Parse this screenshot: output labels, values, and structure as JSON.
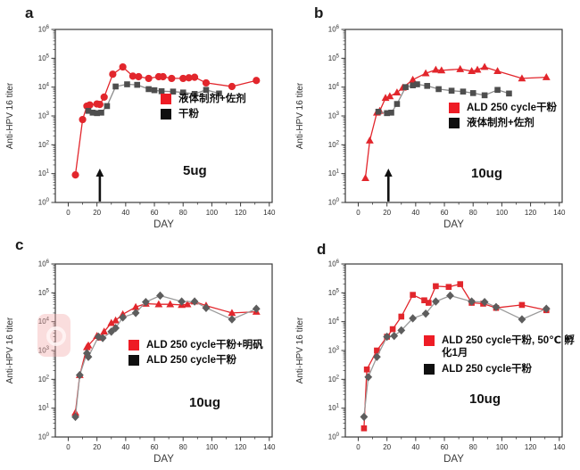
{
  "figure": {
    "background": "#ffffff",
    "watermark_color": "#f2a6a6"
  },
  "colors": {
    "red_marker": "#e2262c",
    "red_line": "#e2262c",
    "gray_square": "#4e4e4e",
    "gray_diamond": "#5d5d5d",
    "gray_line": "#8c8c8c",
    "legend_red": "#ee1c25",
    "legend_black": "#101010",
    "axis": "#3a3a3a"
  },
  "chart_data": [
    {
      "id": "a",
      "panel_label": "a",
      "type": "line",
      "xlabel": "DAY",
      "ylabel": "Anti-HPV 16 titer",
      "x_ticks": [
        0,
        20,
        40,
        60,
        80,
        100,
        120,
        140
      ],
      "x_minor_ticks": [
        10,
        30,
        50,
        70,
        90,
        110,
        130
      ],
      "xlim": [
        -9,
        142
      ],
      "y_scale": "log",
      "ylim_exp": [
        0,
        6
      ],
      "annotation": "5ug",
      "arrow_day": 22,
      "series": [
        {
          "name": "液体制剂+佐剂",
          "marker": "circle",
          "color": "#e2262c",
          "line_color": "#e2262c",
          "legend_color": "#ee1c25",
          "points": [
            [
              5,
              9
            ],
            [
              10,
              750
            ],
            [
              13,
              2200
            ],
            [
              15,
              2400
            ],
            [
              20,
              2600
            ],
            [
              22,
              2500
            ],
            [
              25,
              4500
            ],
            [
              31,
              28000
            ],
            [
              38,
              50000
            ],
            [
              45,
              24000
            ],
            [
              49,
              23000
            ],
            [
              56,
              20000
            ],
            [
              63,
              23000
            ],
            [
              66,
              23000
            ],
            [
              72,
              20000
            ],
            [
              80,
              20000
            ],
            [
              84,
              21000
            ],
            [
              88,
              22000
            ],
            [
              96,
              14000
            ],
            [
              114,
              10500
            ],
            [
              131,
              17000
            ]
          ]
        },
        {
          "name": "干粉",
          "marker": "square",
          "color": "#4e4e4e",
          "line_color": "#8c8c8c",
          "legend_color": "#101010",
          "points": [
            [
              14,
              1500
            ],
            [
              17,
              1300
            ],
            [
              20,
              1250
            ],
            [
              23,
              1300
            ],
            [
              27,
              2200
            ],
            [
              33,
              10500
            ],
            [
              41,
              12500
            ],
            [
              48,
              12000
            ],
            [
              56,
              8500
            ],
            [
              60,
              7800
            ],
            [
              65,
              7200
            ],
            [
              73,
              7000
            ],
            [
              80,
              6500
            ],
            [
              88,
              5800
            ],
            [
              96,
              8000
            ],
            [
              105,
              6000
            ]
          ]
        }
      ]
    },
    {
      "id": "b",
      "panel_label": "b",
      "type": "line",
      "xlabel": "DAY",
      "ylabel": "Anti-HPV 16 titer",
      "x_ticks": [
        0,
        20,
        40,
        60,
        80,
        100,
        120,
        140
      ],
      "x_minor_ticks": [
        10,
        30,
        50,
        70,
        90,
        110,
        130
      ],
      "xlim": [
        -9,
        142
      ],
      "y_scale": "log",
      "ylim_exp": [
        0,
        6
      ],
      "annotation": "10ug",
      "arrow_day": 21,
      "series": [
        {
          "name": "ALD 250 cycle干粉",
          "marker": "triangle",
          "color": "#e2262c",
          "line_color": "#e2262c",
          "legend_color": "#ee1c25",
          "points": [
            [
              5,
              7
            ],
            [
              8,
              140
            ],
            [
              13,
              1300
            ],
            [
              15,
              1500
            ],
            [
              19,
              4200
            ],
            [
              22,
              4800
            ],
            [
              27,
              6500
            ],
            [
              31,
              9500
            ],
            [
              38,
              18000
            ],
            [
              47,
              30000
            ],
            [
              54,
              40000
            ],
            [
              58,
              38000
            ],
            [
              71,
              42000
            ],
            [
              79,
              36000
            ],
            [
              83,
              40000
            ],
            [
              88,
              50000
            ],
            [
              97,
              36000
            ],
            [
              114,
              20000
            ],
            [
              131,
              22000
            ]
          ]
        },
        {
          "name": "液体制剂+佐剂",
          "marker": "square",
          "color": "#4e4e4e",
          "line_color": "#8c8c8c",
          "legend_color": "#101010",
          "points": [
            [
              14,
              1400
            ],
            [
              20,
              1250
            ],
            [
              23,
              1300
            ],
            [
              27,
              2600
            ],
            [
              33,
              10000
            ],
            [
              38,
              11500
            ],
            [
              41,
              12500
            ],
            [
              48,
              11000
            ],
            [
              56,
              8500
            ],
            [
              65,
              7500
            ],
            [
              73,
              7000
            ],
            [
              80,
              6200
            ],
            [
              88,
              5200
            ],
            [
              97,
              8000
            ],
            [
              105,
              6000
            ]
          ]
        }
      ]
    },
    {
      "id": "c",
      "panel_label": "c",
      "type": "line",
      "xlabel": "DAY",
      "ylabel": "Anti-HPV 16 titer",
      "x_ticks": [
        0,
        20,
        40,
        60,
        80,
        100,
        120,
        140
      ],
      "x_minor_ticks": [
        10,
        30,
        50,
        70,
        90,
        110,
        130
      ],
      "xlim": [
        -9,
        142
      ],
      "y_scale": "log",
      "ylim_exp": [
        0,
        6
      ],
      "annotation": "10ug",
      "arrow_day": null,
      "series": [
        {
          "name": "ALD 250 cycle干粉+明矾",
          "marker": "triangle",
          "color": "#e2262c",
          "line_color": "#e2262c",
          "legend_color": "#ee1c25",
          "points": [
            [
              5,
              7
            ],
            [
              8,
              140
            ],
            [
              13,
              1300
            ],
            [
              14,
              1500
            ],
            [
              20,
              3200
            ],
            [
              22,
              2800
            ],
            [
              25,
              4500
            ],
            [
              30,
              9000
            ],
            [
              33,
              11000
            ],
            [
              38,
              18000
            ],
            [
              47,
              32000
            ],
            [
              54,
              42000
            ],
            [
              63,
              40000
            ],
            [
              71,
              40000
            ],
            [
              79,
              38000
            ],
            [
              83,
              40000
            ],
            [
              88,
              50000
            ],
            [
              96,
              36000
            ],
            [
              114,
              20000
            ],
            [
              131,
              22000
            ]
          ]
        },
        {
          "name": "ALD 250 cycle干粉",
          "marker": "diamond",
          "color": "#5d5d5d",
          "line_color": "#9a9a9a",
          "legend_color": "#101010",
          "points": [
            [
              5,
              5
            ],
            [
              8,
              140
            ],
            [
              13,
              800
            ],
            [
              14,
              600
            ],
            [
              21,
              3000
            ],
            [
              24,
              2700
            ],
            [
              30,
              4500
            ],
            [
              33,
              6000
            ],
            [
              38,
              14000
            ],
            [
              47,
              20000
            ],
            [
              54,
              48000
            ],
            [
              64,
              80000
            ],
            [
              79,
              50000
            ],
            [
              88,
              50000
            ],
            [
              96,
              30000
            ],
            [
              114,
              12000
            ],
            [
              131,
              28000
            ]
          ]
        }
      ]
    },
    {
      "id": "d",
      "panel_label": "d",
      "type": "line",
      "xlabel": "DAY",
      "ylabel": "Anti-HPV 16 titer",
      "x_ticks": [
        0,
        20,
        40,
        60,
        80,
        100,
        120,
        140
      ],
      "x_minor_ticks": [
        10,
        30,
        50,
        70,
        90,
        110,
        130
      ],
      "xlim": [
        -9,
        142
      ],
      "y_scale": "log",
      "ylim_exp": [
        0,
        6
      ],
      "annotation": "10ug",
      "arrow_day": null,
      "series": [
        {
          "name": "ALD 250 cycle干粉, 50℃ 孵化1月",
          "marker": "square",
          "color": "#e2262c",
          "line_color": "#e2262c",
          "legend_color": "#ee1c25",
          "points": [
            [
              4,
              2
            ],
            [
              6,
              220
            ],
            [
              13,
              1000
            ],
            [
              20,
              3000
            ],
            [
              24,
              5500
            ],
            [
              30,
              15000
            ],
            [
              38,
              85000
            ],
            [
              46,
              55000
            ],
            [
              49,
              45000
            ],
            [
              54,
              170000
            ],
            [
              63,
              160000
            ],
            [
              71,
              200000
            ],
            [
              79,
              45000
            ],
            [
              87,
              42000
            ],
            [
              96,
              30000
            ],
            [
              114,
              38000
            ],
            [
              131,
              25000
            ]
          ]
        },
        {
          "name": "ALD 250 cycle干粉",
          "marker": "diamond",
          "color": "#5d5d5d",
          "line_color": "#9a9a9a",
          "legend_color": "#101010",
          "points": [
            [
              4,
              5
            ],
            [
              7,
              120
            ],
            [
              13,
              600
            ],
            [
              20,
              3000
            ],
            [
              25,
              3200
            ],
            [
              30,
              5000
            ],
            [
              38,
              13000
            ],
            [
              47,
              19000
            ],
            [
              54,
              50000
            ],
            [
              64,
              80000
            ],
            [
              79,
              50000
            ],
            [
              88,
              48000
            ],
            [
              96,
              32000
            ],
            [
              114,
              12000
            ],
            [
              131,
              28000
            ]
          ]
        }
      ]
    }
  ]
}
